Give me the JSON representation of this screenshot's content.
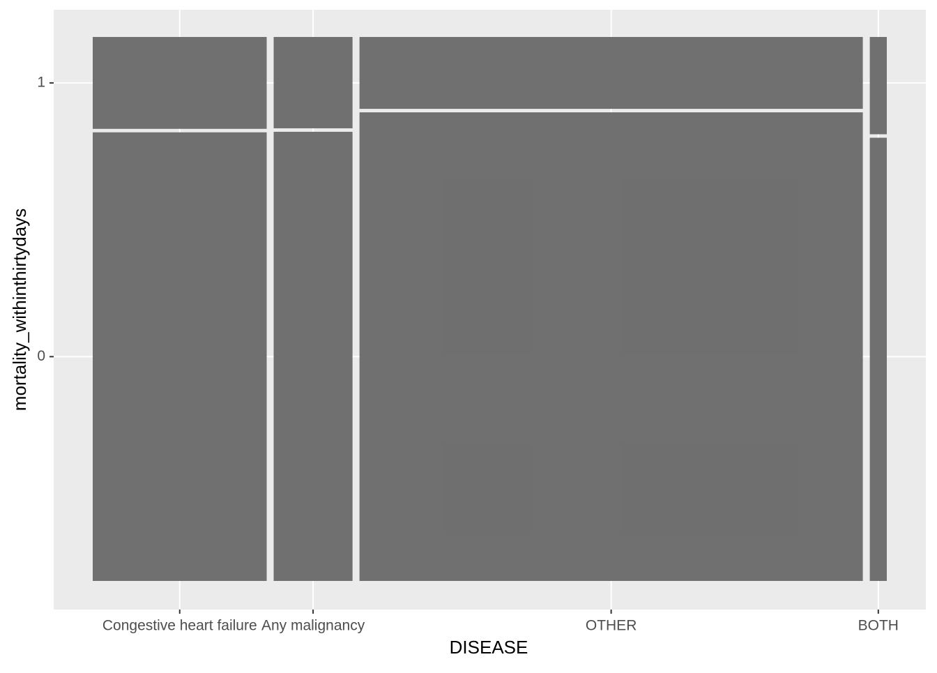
{
  "chart_data": {
    "type": "mosaic",
    "x_label": "DISEASE",
    "y_label": "mortality_withinthirtydays",
    "categories": [
      "Congestive heart failure",
      "Any malignancy",
      "OTHER",
      "BOTH"
    ],
    "weights": [
      0.225,
      0.102,
      0.651,
      0.022
    ],
    "series": [
      {
        "name": "0",
        "values": [
          0.83,
          0.831,
          0.867,
          0.82
        ]
      },
      {
        "name": "1",
        "values": [
          0.17,
          0.169,
          0.133,
          0.18
        ]
      }
    ],
    "color": "#6b6b6b",
    "grid": true
  }
}
